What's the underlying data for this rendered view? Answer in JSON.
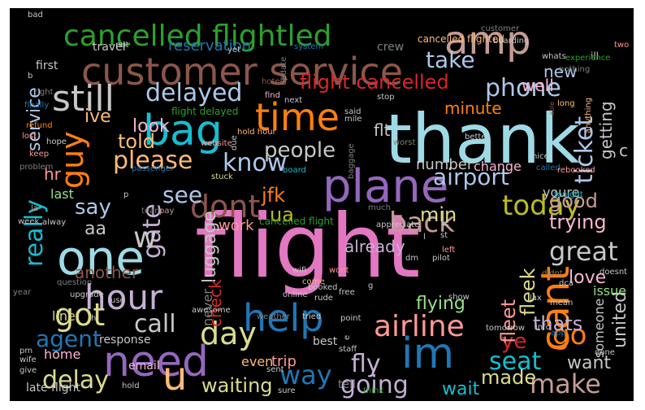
{
  "palette": {
    "pink": "#e377c2",
    "cyan": "#9edae5",
    "teal": "#17becf",
    "blue": "#1f77b4",
    "lightblue": "#aec7e8",
    "orange": "#ff7f0e",
    "peach": "#ffbb78",
    "brown": "#8c564b",
    "tan": "#c49c94",
    "purple": "#9467bd",
    "lavender": "#c5b0d5",
    "red": "#d62728",
    "salmon": "#ff9896",
    "green": "#2ca02c",
    "lightgreen": "#98df8a",
    "olive": "#bcbd22",
    "khaki": "#dbdb8d",
    "gray": "#7f7f7f",
    "silver": "#c7c7c7",
    "lightpink": "#f7b6d2"
  },
  "words": [
    {
      "t": "flight",
      "c": "pink"
    },
    {
      "t": "thank",
      "c": "cyan"
    },
    {
      "t": "customer service",
      "c": "brown"
    },
    {
      "t": "cancelled flightled",
      "c": "green"
    },
    {
      "t": "plane",
      "c": "purple"
    },
    {
      "t": "bag",
      "c": "teal"
    },
    {
      "t": "time",
      "c": "orange"
    },
    {
      "t": "amp",
      "c": "tan"
    },
    {
      "t": "still",
      "c": "silver"
    },
    {
      "t": "one",
      "c": "cyan"
    },
    {
      "t": "need",
      "c": "purple"
    },
    {
      "t": "help",
      "c": "blue"
    },
    {
      "t": "im",
      "c": "blue"
    },
    {
      "t": "hour",
      "c": "lavender"
    },
    {
      "t": "u",
      "c": "peach"
    },
    {
      "t": "cant",
      "c": "orange"
    },
    {
      "t": "got",
      "c": "khaki"
    },
    {
      "t": "guy",
      "c": "orange"
    },
    {
      "t": "day",
      "c": "khaki"
    },
    {
      "t": "dont",
      "c": "brown"
    },
    {
      "t": "delayed",
      "c": "lightblue"
    },
    {
      "t": "know",
      "c": "lightblue"
    },
    {
      "t": "please",
      "c": "peach"
    },
    {
      "t": "airline",
      "c": "salmon"
    },
    {
      "t": "delay",
      "c": "khaki"
    },
    {
      "t": "today",
      "c": "olive"
    },
    {
      "t": "phone",
      "c": "lightblue"
    },
    {
      "t": "take",
      "c": "lightblue"
    },
    {
      "t": "ticket",
      "c": "lightblue"
    },
    {
      "t": "airport",
      "c": "lightblue"
    },
    {
      "t": "flight cancelled",
      "c": "red"
    },
    {
      "t": "people",
      "c": "silver"
    },
    {
      "t": "gate",
      "c": "lavender"
    },
    {
      "t": "back",
      "c": "tan"
    },
    {
      "t": "call",
      "c": "silver"
    },
    {
      "t": "really",
      "c": "teal"
    },
    {
      "t": "fly",
      "c": "lavender"
    },
    {
      "t": "way",
      "c": "blue"
    },
    {
      "t": "see",
      "c": "lightblue"
    },
    {
      "t": "go",
      "c": "orange"
    },
    {
      "t": "great",
      "c": "silver"
    },
    {
      "t": "agent",
      "c": "blue"
    },
    {
      "t": "seat",
      "c": "teal"
    },
    {
      "t": "make",
      "c": "tan"
    },
    {
      "t": "going",
      "c": "lavender"
    },
    {
      "t": "ye",
      "c": "red"
    },
    {
      "t": "waiting",
      "c": "khaki"
    },
    {
      "t": "luggage",
      "c": "silver"
    },
    {
      "t": "say",
      "c": "lightblue"
    },
    {
      "t": "told",
      "c": "peach"
    },
    {
      "t": "service",
      "c": "lightblue"
    },
    {
      "t": "look",
      "c": "lightpink"
    },
    {
      "t": "flying",
      "c": "lightgreen"
    },
    {
      "t": "good",
      "c": "tan"
    },
    {
      "t": "trying",
      "c": "lightpink"
    },
    {
      "t": "love",
      "c": "lightpink"
    },
    {
      "t": "united",
      "c": "silver"
    },
    {
      "t": "want",
      "c": "silver"
    },
    {
      "t": "made",
      "c": "khaki"
    },
    {
      "t": "wait",
      "c": "teal"
    },
    {
      "t": "thats",
      "c": "lavender"
    },
    {
      "t": "fleet",
      "c": "salmon"
    },
    {
      "t": "fleek",
      "c": "khaki"
    },
    {
      "t": "min",
      "c": "khaki"
    },
    {
      "t": "work",
      "c": "salmon"
    },
    {
      "t": "check",
      "c": "red"
    },
    {
      "t": "another",
      "c": "brown"
    },
    {
      "t": "jfk",
      "c": "orange"
    },
    {
      "t": "ua",
      "c": "olive"
    },
    {
      "t": "aa",
      "c": "silver"
    },
    {
      "t": "ive",
      "c": "peach"
    },
    {
      "t": "hr",
      "c": "salmon"
    },
    {
      "t": "well",
      "c": "lightpink"
    },
    {
      "t": "new",
      "c": "lightblue"
    },
    {
      "t": "getting",
      "c": "silver"
    },
    {
      "t": "w",
      "c": "silver"
    },
    {
      "t": "minute",
      "c": "orange"
    },
    {
      "t": "flt",
      "c": "silver"
    },
    {
      "t": "reservation",
      "c": "blue"
    },
    {
      "t": "crew",
      "c": "gray"
    },
    {
      "t": "travel",
      "c": "silver"
    },
    {
      "t": "first",
      "c": "silver"
    },
    {
      "t": "number",
      "c": "silver"
    },
    {
      "t": "change",
      "c": "lightpink"
    },
    {
      "t": "already",
      "c": "lavender"
    },
    {
      "t": "never",
      "c": "gray"
    },
    {
      "t": "last",
      "c": "lightgreen"
    },
    {
      "t": "line",
      "c": "khaki"
    },
    {
      "t": "home",
      "c": "lightpink"
    },
    {
      "t": "trip",
      "c": "salmon"
    },
    {
      "t": "even",
      "c": "peach"
    },
    {
      "t": "email",
      "c": "lightpink"
    },
    {
      "t": "late flight",
      "c": "silver"
    },
    {
      "t": "someone",
      "c": "silver"
    },
    {
      "t": "issue",
      "c": "lightgreen"
    },
    {
      "t": "tell",
      "c": "gray"
    },
    {
      "t": "best",
      "c": "silver"
    },
    {
      "t": "c",
      "c": "silver"
    },
    {
      "t": "youre",
      "c": "silver"
    },
    {
      "t": "cancelled flight",
      "c": "green"
    },
    {
      "t": "response",
      "c": "silver"
    },
    {
      "t": "bad",
      "c": "silver"
    },
    {
      "t": "b",
      "c": "silver"
    },
    {
      "t": "right",
      "c": "gray"
    },
    {
      "t": "put",
      "c": "silver"
    },
    {
      "t": "yet",
      "c": "silver"
    },
    {
      "t": "system",
      "c": "blue"
    },
    {
      "t": "customer",
      "c": "gray"
    },
    {
      "t": "boarding",
      "c": "silver"
    },
    {
      "t": "cancelled flighted",
      "c": "peach"
    },
    {
      "t": "ill",
      "c": "silver"
    },
    {
      "t": "two",
      "c": "salmon"
    },
    {
      "t": "whats",
      "c": "silver"
    },
    {
      "t": "experience",
      "c": "green"
    },
    {
      "t": "nothing",
      "c": "gray"
    },
    {
      "t": "update",
      "c": "gray"
    },
    {
      "t": "hotel",
      "c": "brown"
    },
    {
      "t": "find",
      "c": "lightpink"
    },
    {
      "t": "next",
      "c": "silver"
    },
    {
      "t": "stop",
      "c": "silver"
    },
    {
      "t": "said",
      "c": "silver"
    },
    {
      "t": "mile",
      "c": "silver"
    },
    {
      "t": "long",
      "c": "peach"
    },
    {
      "t": "able",
      "c": "brown"
    },
    {
      "t": "anything",
      "c": "peach"
    },
    {
      "t": "finally",
      "c": "blue"
    },
    {
      "t": "refund",
      "c": "orange"
    },
    {
      "t": "flight delayed",
      "c": "green"
    },
    {
      "t": "hold hour",
      "c": "peach"
    },
    {
      "t": "due",
      "c": "silver"
    },
    {
      "t": "website",
      "c": "salmon"
    },
    {
      "t": "baggage",
      "c": "gray"
    },
    {
      "t": "called",
      "c": "blue"
    },
    {
      "t": "hope",
      "c": "silver"
    },
    {
      "t": "lost",
      "c": "salmon"
    },
    {
      "t": "keep",
      "c": "salmon"
    },
    {
      "t": "problem",
      "c": "gray"
    },
    {
      "t": "passenger",
      "c": "blue"
    },
    {
      "t": "stuck",
      "c": "khaki"
    },
    {
      "t": "board",
      "c": "teal"
    },
    {
      "t": "worst",
      "c": "gray"
    },
    {
      "t": "better",
      "c": "silver"
    },
    {
      "t": "nice",
      "c": "silver"
    },
    {
      "t": "rebooked",
      "c": "salmon"
    },
    {
      "t": "la",
      "c": "tan"
    },
    {
      "t": "team",
      "c": "gray"
    },
    {
      "t": "pay",
      "c": "tan"
    },
    {
      "t": "p",
      "c": "silver"
    },
    {
      "t": "tonight",
      "c": "teal"
    },
    {
      "t": "week",
      "c": "silver"
    },
    {
      "t": "alway",
      "c": "silver"
    },
    {
      "t": "much",
      "c": "gray"
    },
    {
      "t": "appreciate",
      "c": "silver"
    },
    {
      "t": "fi",
      "c": "silver"
    },
    {
      "t": "st",
      "c": "silver"
    },
    {
      "t": "left",
      "c": "salmon"
    },
    {
      "t": "l",
      "c": "silver"
    },
    {
      "t": "dm",
      "c": "silver"
    },
    {
      "t": "pilot",
      "c": "silver"
    },
    {
      "t": "wont",
      "c": "salmon"
    },
    {
      "t": "come",
      "c": "peach"
    },
    {
      "t": "free",
      "c": "silver"
    },
    {
      "t": "didnt",
      "c": "gray"
    },
    {
      "t": "dca",
      "c": "silver"
    },
    {
      "t": "doesnt",
      "c": "silver"
    },
    {
      "t": "online",
      "c": "silver"
    },
    {
      "t": "wifi",
      "c": "silver"
    },
    {
      "t": "g",
      "c": "silver"
    },
    {
      "t": "question",
      "c": "gray"
    },
    {
      "t": "use",
      "c": "silver"
    },
    {
      "t": "year",
      "c": "gray"
    },
    {
      "t": "upgrade",
      "c": "silver"
    },
    {
      "t": "booked",
      "c": "silver"
    },
    {
      "t": "rude",
      "c": "silver"
    },
    {
      "t": "show",
      "c": "silver"
    },
    {
      "t": "h",
      "c": "silver"
    },
    {
      "t": "awesome",
      "c": "silver"
    },
    {
      "t": "lax",
      "c": "silver"
    },
    {
      "t": "mean",
      "c": "silver"
    },
    {
      "t": "weather",
      "c": "gray"
    },
    {
      "t": "tried",
      "c": "silver"
    },
    {
      "t": "point",
      "c": "silver"
    },
    {
      "t": "info",
      "c": "silver"
    },
    {
      "t": "pm",
      "c": "silver"
    },
    {
      "t": "wife",
      "c": "silver"
    },
    {
      "t": "give",
      "c": "silver"
    },
    {
      "t": "e",
      "c": "silver"
    },
    {
      "t": "staff",
      "c": "silver"
    },
    {
      "t": "tomorrow",
      "c": "silver"
    },
    {
      "t": "app",
      "c": "blue"
    },
    {
      "t": "done",
      "c": "silver"
    },
    {
      "t": "sent",
      "c": "silver"
    },
    {
      "t": "hold",
      "c": "silver"
    },
    {
      "t": "sure",
      "c": "silver"
    },
    {
      "t": "think",
      "c": "green"
    }
  ]
}
